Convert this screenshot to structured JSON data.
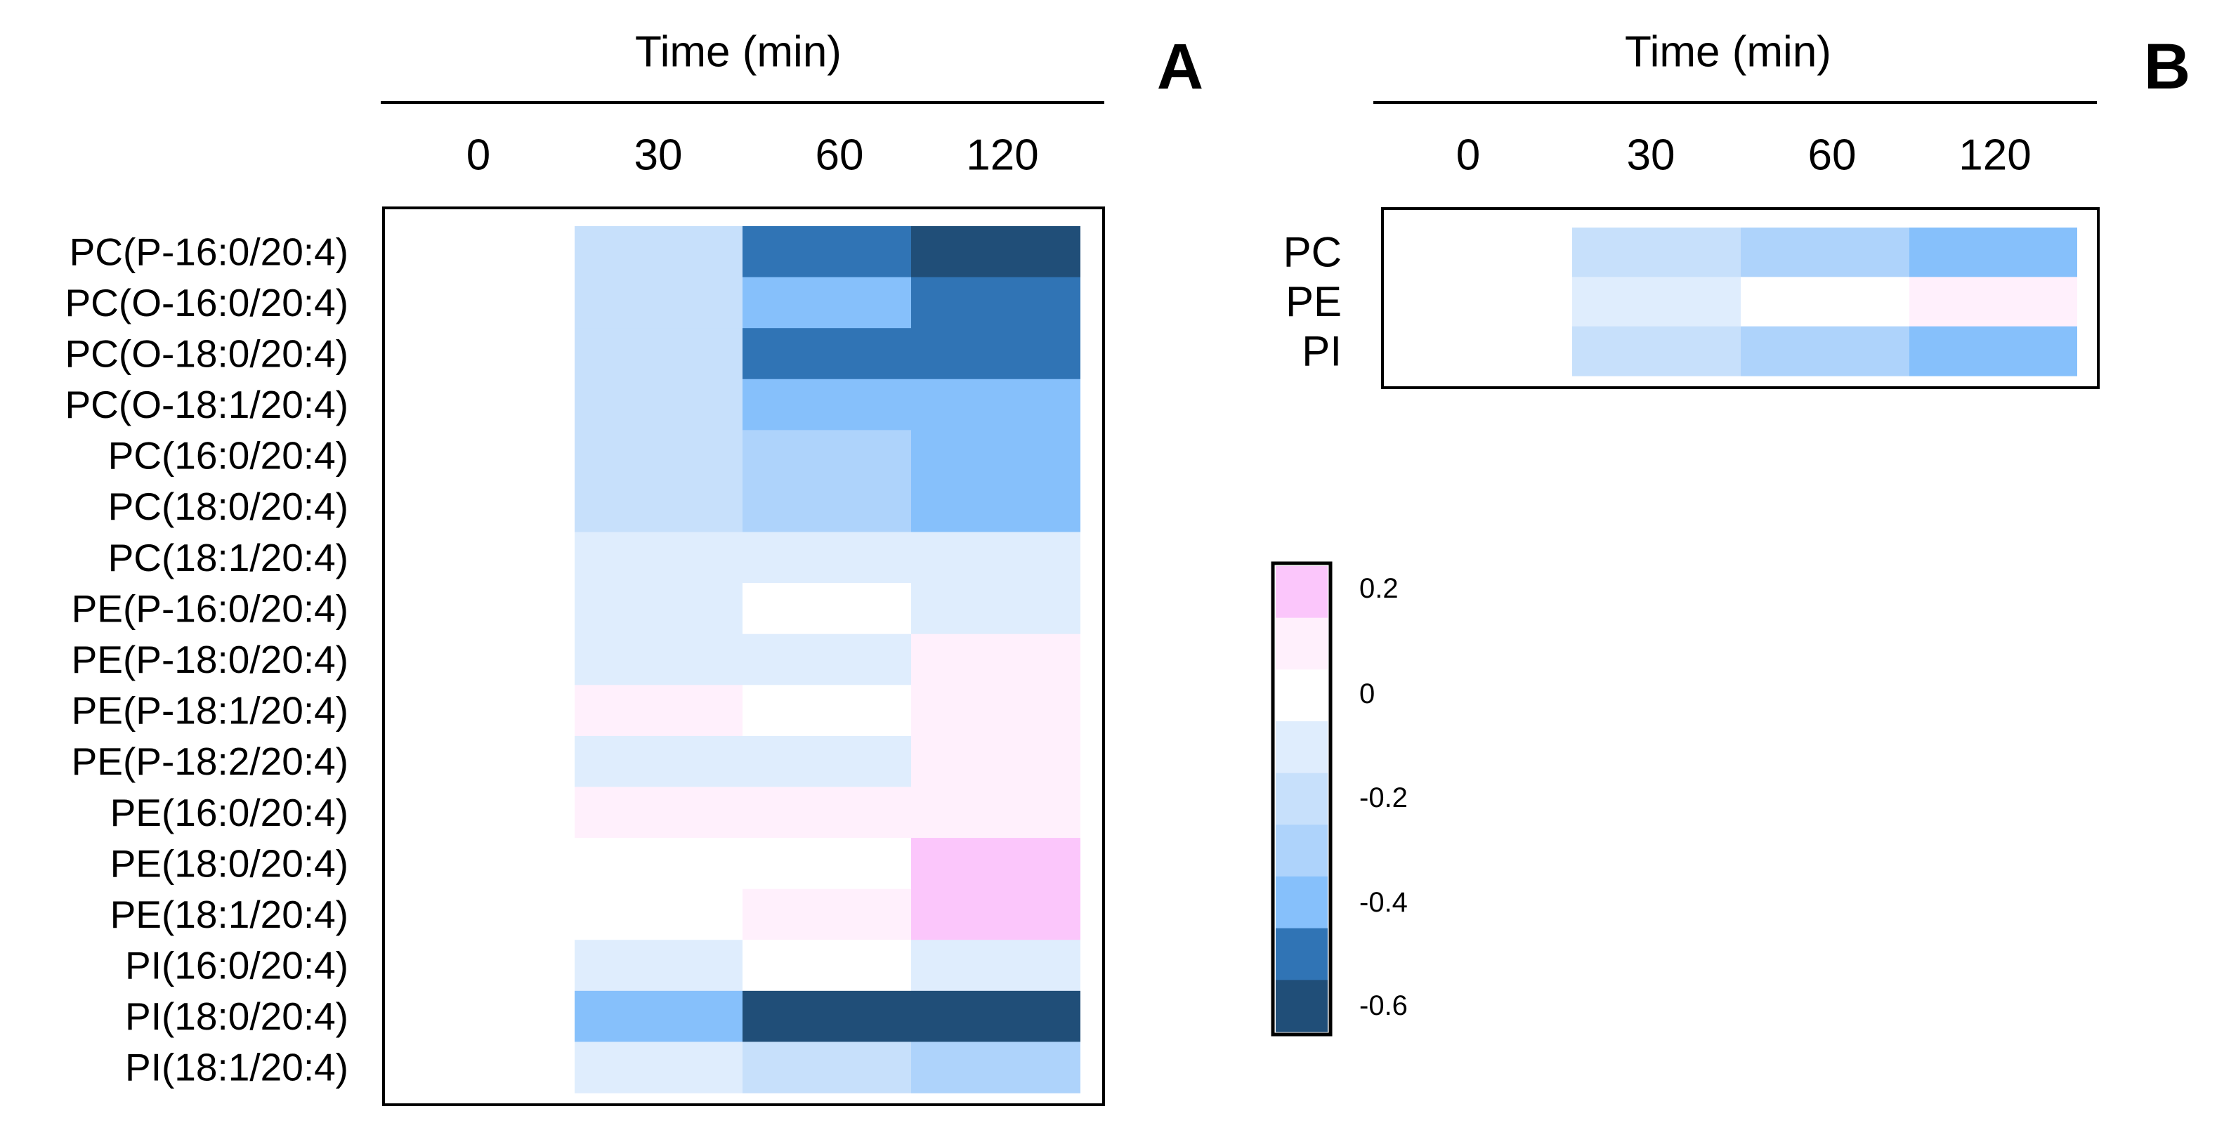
{
  "colors": {
    "levels": [
      {
        "value": 0.2,
        "hex": "#fbc6fb"
      },
      {
        "value": 0.1,
        "hex": "#fff0fc"
      },
      {
        "value": 0,
        "hex": "#ffffff"
      },
      {
        "value": -0.1,
        "hex": "#dfedfd"
      },
      {
        "value": -0.2,
        "hex": "#c7e0fb"
      },
      {
        "value": -0.3,
        "hex": "#aed3fb"
      },
      {
        "value": -0.4,
        "hex": "#86c0fb"
      },
      {
        "value": -0.5,
        "hex": "#3074b5"
      },
      {
        "value": -0.6,
        "hex": "#204e78"
      }
    ]
  },
  "chart_data": [
    {
      "panel_label": "A",
      "type": "heatmap",
      "column_title": "Time (min)",
      "columns": [
        "0",
        "30",
        "60",
        "120"
      ],
      "rows": [
        "PC(P-16:0/20:4)",
        "PC(O-16:0/20:4)",
        "PC(O-18:0/20:4)",
        "PC(O-18:1/20:4)",
        "PC(16:0/20:4)",
        "PC(18:0/20:4)",
        "PC(18:1/20:4)",
        "PE(P-16:0/20:4)",
        "PE(P-18:0/20:4)",
        "PE(P-18:1/20:4)",
        "PE(P-18:2/20:4)",
        "PE(16:0/20:4)",
        "PE(18:0/20:4)",
        "PE(18:1/20:4)",
        "PI(16:0/20:4)",
        "PI(18:0/20:4)",
        "PI(18:1/20:4)"
      ],
      "values": [
        [
          0,
          -0.2,
          -0.5,
          -0.6
        ],
        [
          0,
          -0.2,
          -0.4,
          -0.5
        ],
        [
          0,
          -0.2,
          -0.5,
          -0.5
        ],
        [
          0,
          -0.2,
          -0.4,
          -0.4
        ],
        [
          0,
          -0.2,
          -0.3,
          -0.4
        ],
        [
          0,
          -0.2,
          -0.3,
          -0.4
        ],
        [
          0,
          -0.1,
          -0.1,
          -0.1
        ],
        [
          0,
          -0.1,
          0,
          -0.1
        ],
        [
          0,
          -0.1,
          -0.1,
          0.1
        ],
        [
          0,
          0.1,
          0,
          0.1
        ],
        [
          0,
          -0.1,
          -0.1,
          0.1
        ],
        [
          0,
          0.1,
          0.1,
          0.1
        ],
        [
          0,
          0,
          0,
          0.2
        ],
        [
          0,
          0,
          0.1,
          0.2
        ],
        [
          0,
          -0.1,
          0,
          -0.1
        ],
        [
          0,
          -0.4,
          -0.6,
          -0.6
        ],
        [
          0,
          -0.1,
          -0.2,
          -0.3
        ]
      ]
    },
    {
      "panel_label": "B",
      "type": "heatmap",
      "column_title": "Time (min)",
      "columns": [
        "0",
        "30",
        "60",
        "120"
      ],
      "rows": [
        "PC",
        "PE",
        "PI"
      ],
      "values": [
        [
          0,
          -0.2,
          -0.3,
          -0.4
        ],
        [
          0,
          -0.1,
          0,
          0.1
        ],
        [
          0,
          -0.2,
          -0.3,
          -0.4
        ]
      ]
    }
  ],
  "legend": {
    "tick_labels": [
      "0.2",
      "0",
      "-0.2",
      "-0.4",
      "-0.6"
    ]
  }
}
